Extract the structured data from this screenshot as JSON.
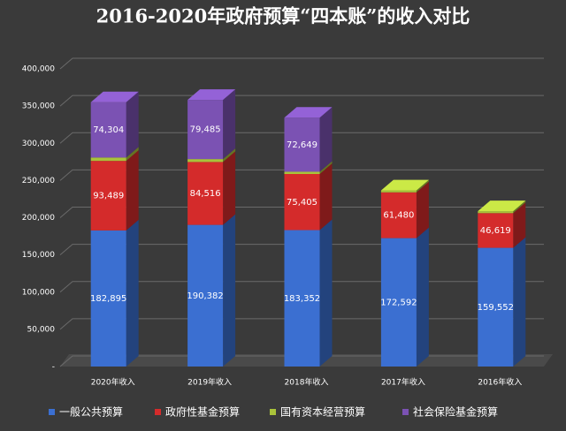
{
  "chart_data": {
    "type": "bar",
    "stacked": true,
    "title": "2016-2020年政府预算“四本账”的收入对比",
    "categories": [
      "2020年收入",
      "2019年收入",
      "2018年收入",
      "2017年收入",
      "2016年收入"
    ],
    "series": [
      {
        "name": "一般公共预算",
        "color": "#3b6fd1",
        "values": [
          182895,
          190382,
          183352,
          172592,
          159552
        ],
        "value_labels": [
          "182,895",
          "190,382",
          "183,352",
          "172,592",
          "159,552"
        ]
      },
      {
        "name": "政府性基金预算",
        "color": "#d42b2b",
        "values": [
          93489,
          84516,
          75405,
          61480,
          46619
        ],
        "value_labels": [
          "93,489",
          "84,516",
          "75,405",
          "61,480",
          "46,619"
        ]
      },
      {
        "name": "国有资本经营预算",
        "color": "#a9c23a",
        "values": [
          4500,
          3900,
          3000,
          2600,
          2600
        ]
      },
      {
        "name": "社会保险基金预算",
        "color": "#7b52b3",
        "values": [
          74304,
          79485,
          72649,
          null,
          null
        ],
        "value_labels": [
          "74,304",
          "79,485",
          "72,649",
          null,
          null
        ]
      }
    ],
    "ylim": [
      0,
      400000
    ],
    "yticks": [
      {
        "value": 0,
        "label": "-"
      },
      {
        "value": 50000,
        "label": "50,000"
      },
      {
        "value": 100000,
        "label": "100,000"
      },
      {
        "value": 150000,
        "label": "150,000"
      },
      {
        "value": 200000,
        "label": "200,000"
      },
      {
        "value": 250000,
        "label": "250,000"
      },
      {
        "value": 300000,
        "label": "300,000"
      },
      {
        "value": 350000,
        "label": "350,000"
      },
      {
        "value": 400000,
        "label": "400,000"
      }
    ],
    "grid": true,
    "legend": "bottom"
  }
}
